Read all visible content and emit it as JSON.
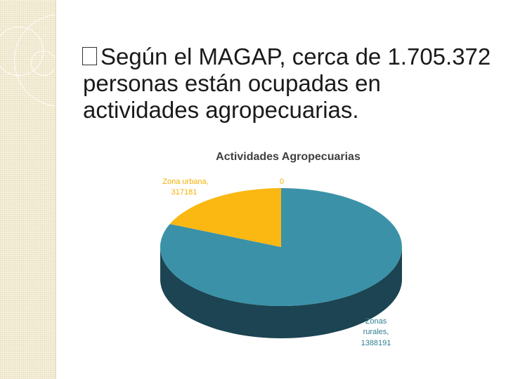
{
  "slide": {
    "bullet_line_1": "Según el MAGAP, cerca de 1.705.372",
    "bullet_line_2": "personas están ocupadas en",
    "bullet_line_3": "actividades agropecuarias.",
    "bullet_icon": "box-bullet-icon"
  },
  "colors": {
    "urbana": "#fbb812",
    "rural_top": "#3b92a8",
    "rural_side": "#1c4452",
    "label_urbana": "#f4b000",
    "label_rural": "#2f7f92"
  },
  "chart_data": {
    "type": "pie",
    "title": "Actividades Agropecuarias",
    "labels": [
      "Zona urbana",
      "Zonas rurales"
    ],
    "values": [
      317181,
      1388191
    ],
    "extra_label": "0",
    "data_labels": {
      "urbana": [
        "Zona urbana,",
        "317181"
      ],
      "rural": [
        "Zonas",
        "rurales,",
        "1388191"
      ],
      "zero": "0"
    }
  }
}
